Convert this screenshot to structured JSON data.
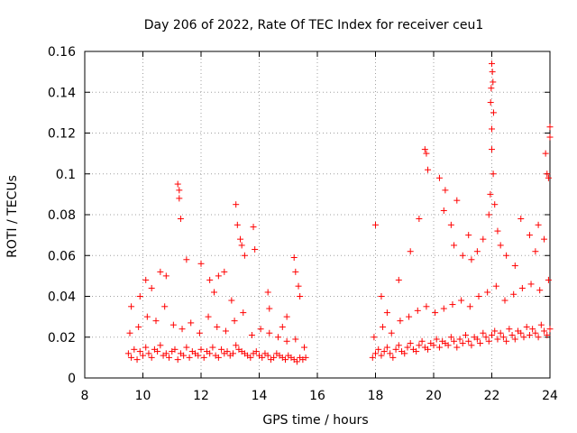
{
  "chart_data": {
    "type": "scatter",
    "title": "Day 206 of 2022, Rate Of TEC Index for receiver ceu1",
    "xlabel": "GPS time / hours",
    "ylabel": "ROTI / TECUs",
    "xlim": [
      8,
      24
    ],
    "ylim": [
      0,
      0.16
    ],
    "xticks": [
      8,
      10,
      12,
      14,
      16,
      18,
      20,
      22,
      24
    ],
    "xtick_labels": [
      "8",
      "10",
      "12",
      "14",
      "16",
      "18",
      "20",
      "22",
      "24"
    ],
    "yticks": [
      0,
      0.02,
      0.04,
      0.06,
      0.08,
      0.1,
      0.12,
      0.14,
      0.16
    ],
    "ytick_labels": [
      "0",
      "0.02",
      "0.04",
      "0.06",
      "0.08",
      "0.1",
      "0.12",
      "0.14",
      "0.16"
    ],
    "grid": true,
    "marker": "+",
    "color": "#ff0000",
    "series": [
      {
        "name": "ceu1",
        "x": [
          9.5,
          9.6,
          9.7,
          9.8,
          9.9,
          10.0,
          10.1,
          10.2,
          10.3,
          10.4,
          10.5,
          10.6,
          10.7,
          10.8,
          10.9,
          11.0,
          11.1,
          11.2,
          11.3,
          11.4,
          11.5,
          11.6,
          11.7,
          11.8,
          11.9,
          12.0,
          12.1,
          12.2,
          12.3,
          12.4,
          12.5,
          12.6,
          12.7,
          12.8,
          12.9,
          13.0,
          13.1,
          13.2,
          13.3,
          13.4,
          13.5,
          13.6,
          13.7,
          13.8,
          13.9,
          14.0,
          14.1,
          14.2,
          14.3,
          14.4,
          14.5,
          14.6,
          14.7,
          14.8,
          14.9,
          15.0,
          15.1,
          15.2,
          15.3,
          15.4,
          15.5,
          15.6,
          9.55,
          9.85,
          10.15,
          10.45,
          10.75,
          11.05,
          11.35,
          11.65,
          11.95,
          12.25,
          12.55,
          12.85,
          13.15,
          13.45,
          13.75,
          14.05,
          14.35,
          14.65,
          14.95,
          15.25,
          15.55,
          9.6,
          9.9,
          10.1,
          10.3,
          10.6,
          10.8,
          11.2,
          11.25,
          11.25,
          11.3,
          11.5,
          12.0,
          12.3,
          12.45,
          12.6,
          12.8,
          13.05,
          13.2,
          13.25,
          13.35,
          13.4,
          13.5,
          13.8,
          13.85,
          14.3,
          14.35,
          14.8,
          14.95,
          15.2,
          15.25,
          15.35,
          15.4,
          17.9,
          18.0,
          18.1,
          18.2,
          18.3,
          18.4,
          18.5,
          18.6,
          18.7,
          18.8,
          18.9,
          19.0,
          19.1,
          19.2,
          19.3,
          19.4,
          19.5,
          19.6,
          19.7,
          19.8,
          19.9,
          20.0,
          20.1,
          20.2,
          20.3,
          20.4,
          20.5,
          20.6,
          20.7,
          20.8,
          20.9,
          21.0,
          21.1,
          21.2,
          21.3,
          21.4,
          21.5,
          21.6,
          21.7,
          21.8,
          21.9,
          22.0,
          22.1,
          22.2,
          22.3,
          22.4,
          22.5,
          22.6,
          22.7,
          22.8,
          22.9,
          23.0,
          23.1,
          23.2,
          23.3,
          23.4,
          23.5,
          23.6,
          23.7,
          23.8,
          23.9,
          24.0,
          17.95,
          18.25,
          18.55,
          18.85,
          19.15,
          19.45,
          19.75,
          20.05,
          20.35,
          20.65,
          20.95,
          21.25,
          21.55,
          21.85,
          22.15,
          22.45,
          22.75,
          23.05,
          23.35,
          23.65,
          23.95,
          18.0,
          18.2,
          18.4,
          18.8,
          19.2,
          19.5,
          19.7,
          19.75,
          19.8,
          20.2,
          20.35,
          20.4,
          20.6,
          20.7,
          20.8,
          21.0,
          21.2,
          21.3,
          21.5,
          21.7,
          21.9,
          21.95,
          22.0,
          22.0,
          22.05,
          22.1,
          22.2,
          22.3,
          22.5,
          22.8,
          23.0,
          23.3,
          23.5,
          23.6,
          23.8,
          23.85,
          23.9,
          23.95,
          24.0,
          24.0,
          22.0,
          22.02,
          22.04,
          21.98,
          21.96,
          22.06
        ],
        "y": [
          0.012,
          0.01,
          0.014,
          0.009,
          0.013,
          0.011,
          0.015,
          0.012,
          0.01,
          0.014,
          0.013,
          0.016,
          0.011,
          0.012,
          0.01,
          0.013,
          0.014,
          0.009,
          0.012,
          0.011,
          0.015,
          0.01,
          0.013,
          0.012,
          0.011,
          0.014,
          0.01,
          0.013,
          0.012,
          0.015,
          0.011,
          0.01,
          0.014,
          0.012,
          0.013,
          0.011,
          0.012,
          0.016,
          0.014,
          0.013,
          0.012,
          0.011,
          0.01,
          0.012,
          0.013,
          0.011,
          0.01,
          0.012,
          0.011,
          0.009,
          0.01,
          0.012,
          0.011,
          0.01,
          0.009,
          0.011,
          0.01,
          0.009,
          0.008,
          0.01,
          0.009,
          0.01,
          0.022,
          0.025,
          0.03,
          0.028,
          0.035,
          0.026,
          0.024,
          0.027,
          0.022,
          0.03,
          0.025,
          0.023,
          0.028,
          0.032,
          0.021,
          0.024,
          0.022,
          0.02,
          0.018,
          0.019,
          0.015,
          0.035,
          0.04,
          0.048,
          0.044,
          0.052,
          0.05,
          0.095,
          0.092,
          0.088,
          0.078,
          0.058,
          0.056,
          0.048,
          0.042,
          0.05,
          0.052,
          0.038,
          0.085,
          0.075,
          0.068,
          0.065,
          0.06,
          0.074,
          0.063,
          0.042,
          0.034,
          0.025,
          0.03,
          0.059,
          0.052,
          0.045,
          0.04,
          0.01,
          0.012,
          0.014,
          0.011,
          0.013,
          0.015,
          0.012,
          0.01,
          0.014,
          0.016,
          0.013,
          0.012,
          0.015,
          0.017,
          0.014,
          0.013,
          0.016,
          0.018,
          0.015,
          0.014,
          0.017,
          0.016,
          0.019,
          0.015,
          0.018,
          0.017,
          0.016,
          0.02,
          0.018,
          0.015,
          0.019,
          0.017,
          0.021,
          0.018,
          0.016,
          0.02,
          0.019,
          0.017,
          0.022,
          0.02,
          0.018,
          0.021,
          0.023,
          0.019,
          0.022,
          0.02,
          0.018,
          0.024,
          0.021,
          0.019,
          0.023,
          0.022,
          0.02,
          0.025,
          0.021,
          0.024,
          0.022,
          0.02,
          0.026,
          0.023,
          0.021,
          0.024,
          0.02,
          0.025,
          0.022,
          0.028,
          0.03,
          0.033,
          0.035,
          0.032,
          0.034,
          0.036,
          0.038,
          0.035,
          0.04,
          0.042,
          0.045,
          0.038,
          0.041,
          0.044,
          0.046,
          0.043,
          0.048,
          0.075,
          0.04,
          0.032,
          0.048,
          0.062,
          0.078,
          0.112,
          0.11,
          0.102,
          0.098,
          0.082,
          0.092,
          0.075,
          0.065,
          0.087,
          0.06,
          0.07,
          0.058,
          0.062,
          0.068,
          0.08,
          0.09,
          0.122,
          0.112,
          0.1,
          0.085,
          0.072,
          0.065,
          0.06,
          0.055,
          0.078,
          0.07,
          0.062,
          0.075,
          0.068,
          0.11,
          0.1,
          0.098,
          0.118,
          0.123,
          0.154,
          0.15,
          0.145,
          0.142,
          0.135,
          0.13
        ]
      }
    ]
  }
}
